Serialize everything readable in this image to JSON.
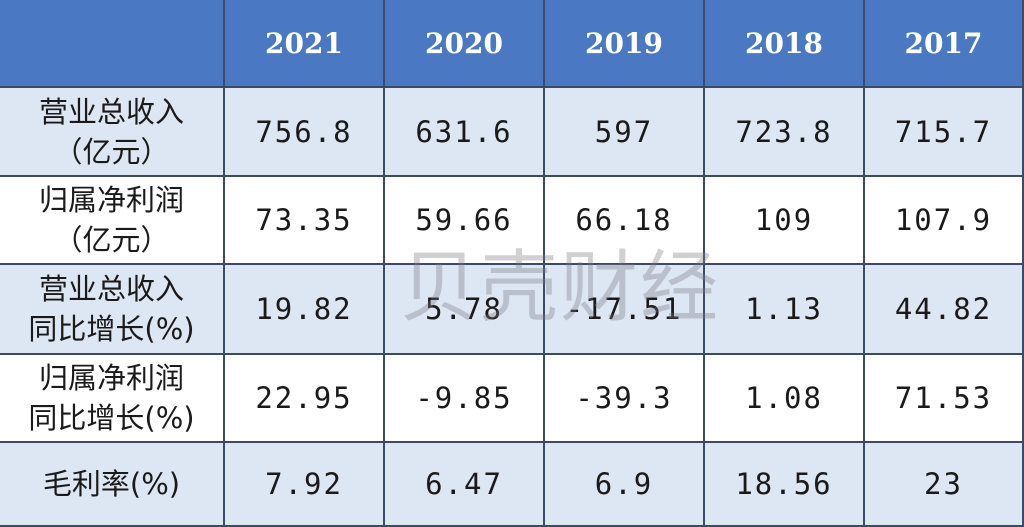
{
  "table": {
    "header": [
      "",
      "2021",
      "2020",
      "2019",
      "2018",
      "2017"
    ],
    "rows": [
      {
        "label": [
          "营业总收入",
          "（亿元）"
        ],
        "cells": [
          "756.8",
          "631.6",
          "597",
          "723.8",
          "715.7"
        ]
      },
      {
        "label": [
          "归属净利润",
          "（亿元）"
        ],
        "cells": [
          "73.35",
          "59.66",
          "66.18",
          "109",
          "107.9"
        ]
      },
      {
        "label": [
          "营业总收入",
          "同比增长(%)"
        ],
        "cells": [
          "19.82",
          "5.78",
          "-17.51",
          "1.13",
          "44.82"
        ]
      },
      {
        "label": [
          "归属净利润",
          "同比增长(%)"
        ],
        "cells": [
          "22.95",
          "-9.85",
          "-39.3",
          "1.08",
          "71.53"
        ]
      },
      {
        "label": [
          "毛利率(%)"
        ],
        "cells": [
          "7.92",
          "6.47",
          "6.9",
          "18.56",
          "23"
        ]
      }
    ]
  },
  "watermark": "贝壳财经"
}
